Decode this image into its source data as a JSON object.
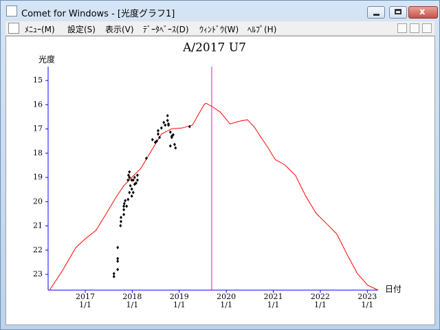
{
  "window": {
    "title": "Comet for Windows - [光度グラフ1]",
    "menu": [
      "ﾒﾆｭｰ(M)",
      "設定(S)",
      "表示(V)",
      "ﾃﾞｰﾀﾍﾞｰｽ(D)",
      "ｳｨﾝﾄﾞｳ(W)",
      "ﾍﾙﾌﾟ(H)"
    ]
  },
  "chart_data": {
    "type": "line",
    "title": "A/2017 U7",
    "y_label": "光度",
    "x_label": "日付",
    "xlim": [
      2016.21,
      2023.23
    ],
    "ylim": [
      23.65,
      14.43
    ],
    "xticks": [
      {
        "value": 2017,
        "label": "2017\n1/1"
      },
      {
        "value": 2018,
        "label": "2018\n1/1"
      },
      {
        "value": 2019,
        "label": "2019\n1/1"
      },
      {
        "value": 2020,
        "label": "2020\n1/1"
      },
      {
        "value": 2021,
        "label": "2021\n1/1"
      },
      {
        "value": 2022,
        "label": "2022\n1/1"
      },
      {
        "value": 2023,
        "label": "2023\n1/1"
      }
    ],
    "yticks": [
      15,
      16,
      17,
      18,
      19,
      20,
      21,
      22,
      23
    ],
    "axis_color": "#0000ff",
    "marker_x": 2019.69,
    "marker_color": "#ff00ff",
    "series": [
      {
        "kind": "line",
        "color": "#ff0000",
        "x": [
          2016.24,
          2016.5,
          2016.8,
          2017.01,
          2017.23,
          2017.45,
          2017.67,
          2017.82,
          2017.99,
          2018.18,
          2018.4,
          2018.62,
          2018.84,
          2019.06,
          2019.28,
          2019.42,
          2019.53,
          2019.57,
          2019.72,
          2019.87,
          2020.08,
          2020.3,
          2020.45,
          2020.6,
          2020.74,
          2020.89,
          2021.04,
          2021.25,
          2021.47,
          2021.69,
          2021.91,
          2022.13,
          2022.35,
          2022.57,
          2022.79,
          2023.01,
          2023.23
        ],
        "values": [
          23.65,
          22.89,
          21.89,
          21.52,
          21.18,
          20.48,
          19.77,
          19.34,
          19.0,
          18.63,
          17.92,
          17.21,
          16.99,
          16.96,
          16.84,
          16.36,
          15.99,
          15.94,
          16.1,
          16.3,
          16.79,
          16.67,
          16.62,
          16.93,
          17.35,
          17.78,
          18.26,
          18.49,
          18.91,
          19.77,
          20.48,
          20.9,
          21.33,
          22.18,
          22.97,
          23.45,
          23.65
        ]
      },
      {
        "kind": "points",
        "color": "#000000",
        "x": [
          2017.61,
          2017.61,
          2017.69,
          2017.69,
          2017.69,
          2017.69,
          2017.75,
          2017.76,
          2017.76,
          2017.82,
          2017.82,
          2017.82,
          2017.83,
          2017.85,
          2017.88,
          2017.91,
          2017.94,
          2017.91,
          2017.92,
          2017.94,
          2017.96,
          2017.99,
          2017.99,
          2018.02,
          2018.02,
          2018.05,
          2018.05,
          2018.08,
          2018.11,
          2018.11,
          2017.99,
          2017.94,
          2018.3,
          2018.43,
          2018.49,
          2018.52,
          2018.55,
          2018.55,
          2018.58,
          2018.62,
          2018.67,
          2018.7,
          2018.75,
          2018.77,
          2018.81,
          2018.81,
          2018.84,
          2018.84,
          2018.87,
          2018.9,
          2018.92,
          2019.22,
          2018.75,
          2018.77
        ],
        "values": [
          23.09,
          22.97,
          22.8,
          22.46,
          22.35,
          21.89,
          20.99,
          20.82,
          20.65,
          20.53,
          20.33,
          20.19,
          20.08,
          19.96,
          20.19,
          19.91,
          19.62,
          19.11,
          18.91,
          18.77,
          19.34,
          19.77,
          19.48,
          19.62,
          19.11,
          19.28,
          19.0,
          19.23,
          19.11,
          18.91,
          19.11,
          19.0,
          18.21,
          17.44,
          17.55,
          17.5,
          17.21,
          17.07,
          17.35,
          16.96,
          16.73,
          16.84,
          16.65,
          16.79,
          17.13,
          17.7,
          17.35,
          17.3,
          17.24,
          17.64,
          17.78,
          16.9,
          16.45,
          16.84
        ]
      }
    ]
  }
}
